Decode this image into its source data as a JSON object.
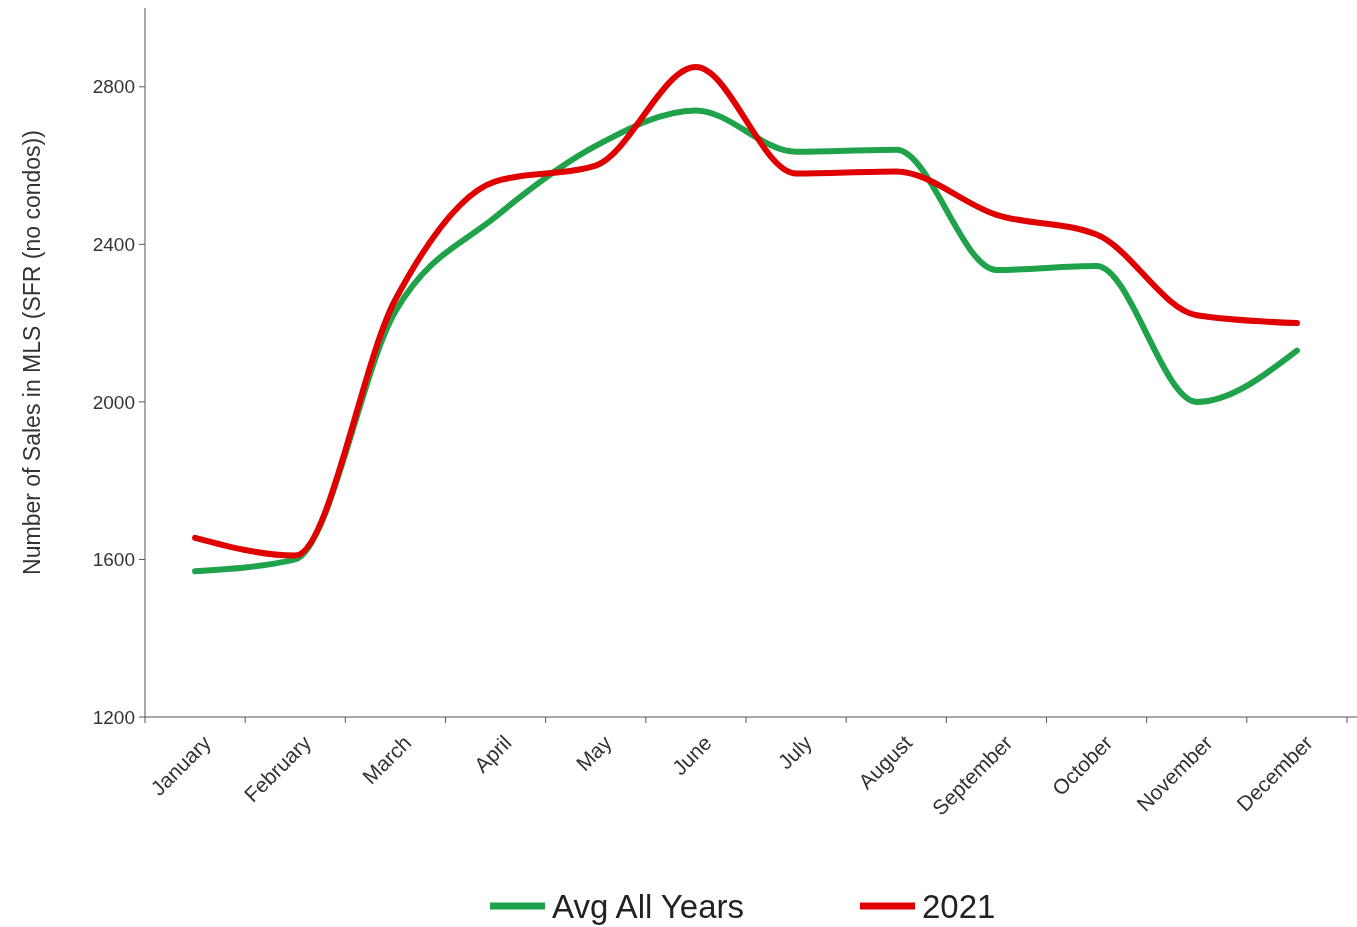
{
  "chart_data": {
    "type": "line",
    "ylabel": "Number of Sales in MLS (SFR (no condos))",
    "categories": [
      "January",
      "February",
      "March",
      "April",
      "May",
      "June",
      "July",
      "August",
      "September",
      "October",
      "November",
      "December"
    ],
    "series": [
      {
        "name": "Avg All Years",
        "color": "#1fa24a",
        "values": [
          1570,
          1600,
          2230,
          2470,
          2650,
          2740,
          2635,
          2640,
          2335,
          2345,
          2000,
          2130
        ]
      },
      {
        "name": "2021",
        "color": "#e00000",
        "values": [
          1655,
          1610,
          2260,
          2560,
          2600,
          2850,
          2580,
          2585,
          2475,
          2425,
          2220,
          2200
        ]
      }
    ],
    "ylim": [
      1200,
      3000
    ],
    "yticks": [
      1200,
      1600,
      2000,
      2400,
      2800
    ],
    "grid": false,
    "legend": "bottom",
    "marker": "none",
    "line_style": "solid"
  }
}
